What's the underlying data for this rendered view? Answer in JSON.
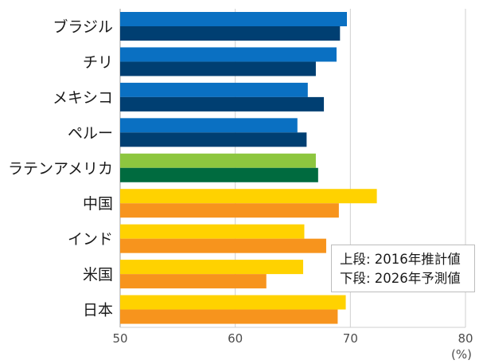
{
  "chart_data": {
    "type": "bar",
    "orientation": "horizontal",
    "categories": [
      "ブラジル",
      "チリ",
      "メキシコ",
      "ペルー",
      "ラテンアメリカ",
      "中国",
      "インド",
      "米国",
      "日本"
    ],
    "series": [
      {
        "values": [
          69.7,
          68.8,
          66.3,
          65.4,
          67.0,
          72.3,
          66.0,
          65.9,
          69.6
        ]
      },
      {
        "values": [
          69.1,
          67.0,
          67.7,
          66.2,
          67.2,
          69.0,
          67.9,
          62.7,
          68.9
        ]
      }
    ],
    "series_colors": [
      [
        "#0a70c2",
        "#0a70c2",
        "#0a70c2",
        "#0a70c2",
        "#8dc63f",
        "#ffd200",
        "#ffd200",
        "#ffd200",
        "#ffd200"
      ],
      [
        "#003f72",
        "#003f72",
        "#003f72",
        "#003f72",
        "#006b3f",
        "#f7941d",
        "#f7941d",
        "#f7941d",
        "#f7941d"
      ]
    ],
    "x_ticks": [
      "50",
      "60",
      "70",
      "80"
    ],
    "xlim": [
      50,
      80
    ],
    "unit": "(%)",
    "grid": true
  },
  "legend": {
    "line1": "上段: 2016年推計値",
    "line2": "下段: 2026年予測値"
  }
}
